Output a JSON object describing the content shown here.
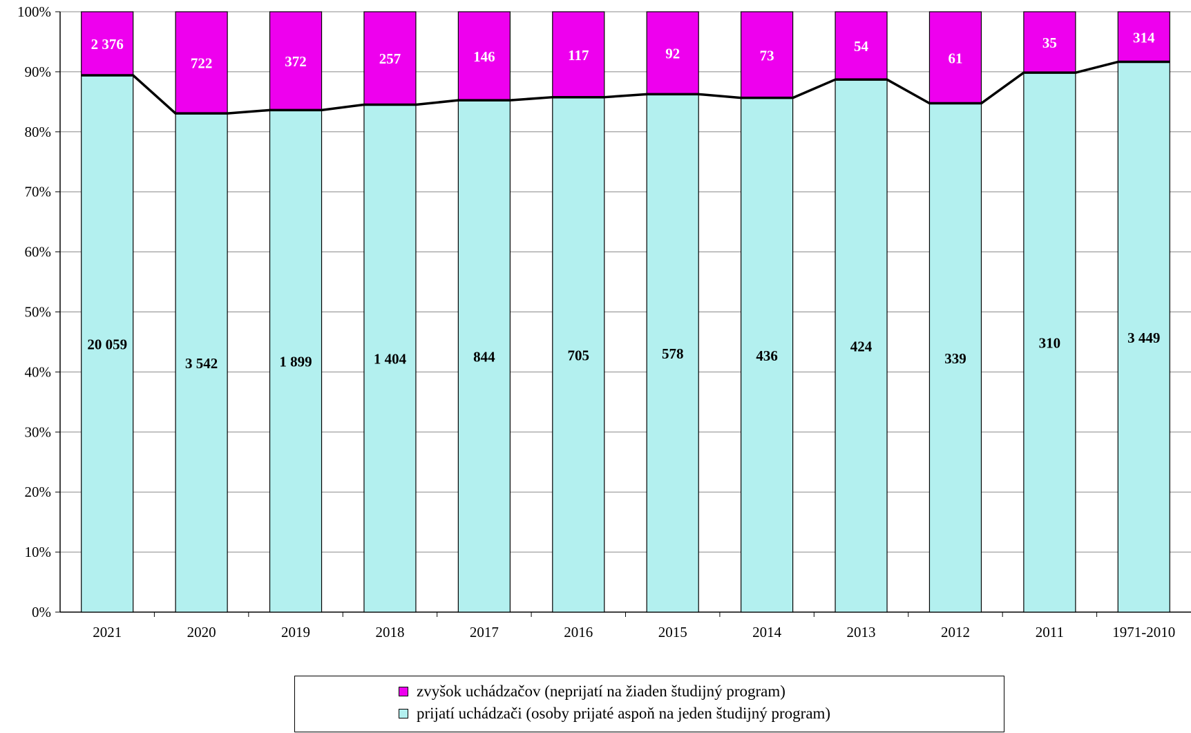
{
  "chart_data": {
    "type": "bar",
    "stacked": true,
    "normalized": true,
    "categories": [
      "2021",
      "2020",
      "2019",
      "2018",
      "2017",
      "2016",
      "2015",
      "2014",
      "2013",
      "2012",
      "2011",
      "1971-2010"
    ],
    "series": [
      {
        "name": "prijatí uchádzači (osoby prijaté aspoň na jeden študijný program)",
        "color": "#b3f0ef",
        "values": [
          20059,
          3542,
          1899,
          1404,
          844,
          705,
          578,
          436,
          424,
          339,
          310,
          3449
        ],
        "labels": [
          "20 059",
          "3 542",
          "1 899",
          "1 404",
          "844",
          "705",
          "578",
          "436",
          "424",
          "339",
          "310",
          "3 449"
        ]
      },
      {
        "name": "zvyšok uchádzačov (neprijatí  na žiaden študijný program)",
        "color": "#ee00ee",
        "values": [
          2376,
          722,
          372,
          257,
          146,
          117,
          92,
          73,
          54,
          61,
          35,
          314
        ],
        "labels": [
          "2 376",
          "722",
          "372",
          "257",
          "146",
          "117",
          "92",
          "73",
          "54",
          "61",
          "35",
          "314"
        ]
      }
    ],
    "y_ticks": [
      "0%",
      "10%",
      "20%",
      "30%",
      "40%",
      "50%",
      "60%",
      "70%",
      "80%",
      "90%",
      "100%"
    ],
    "ylim": [
      0,
      100
    ],
    "grid": true,
    "legend_position": "bottom"
  }
}
